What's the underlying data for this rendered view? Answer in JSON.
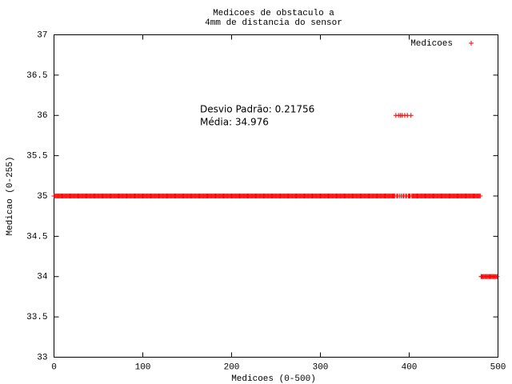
{
  "chart_data": {
    "type": "scatter",
    "title_lines": [
      "Medicoes de obstaculo a",
      "4mm de distancia do sensor"
    ],
    "x_label": "Medicoes (0-500)",
    "y_label": "Medicao (0-255)",
    "annotations": [
      "Desvio Padrão: 0.21756",
      "Média: 34.976"
    ],
    "xlim": [
      0,
      500
    ],
    "ylim": [
      33,
      37
    ],
    "xticks": [
      0,
      100,
      200,
      300,
      400,
      500
    ],
    "yticks": [
      33,
      33.5,
      34,
      34.5,
      35,
      35.5,
      36,
      36.5,
      37
    ],
    "legend": "top-right",
    "series": [
      {
        "name": "Medicoes",
        "color": "#ff0000",
        "x": [
          0,
          1,
          2,
          3,
          4,
          5,
          6,
          7,
          8,
          9,
          10,
          11,
          12,
          13,
          14,
          15,
          16,
          17,
          18,
          19,
          20,
          21,
          22,
          23,
          24,
          25,
          26,
          27,
          28,
          29,
          30,
          31,
          32,
          33,
          34,
          35,
          36,
          37,
          38,
          39,
          40,
          41,
          42,
          43,
          44,
          45,
          46,
          47,
          48,
          49,
          50,
          51,
          52,
          53,
          54,
          55,
          56,
          57,
          58,
          59,
          60,
          61,
          62,
          63,
          64,
          65,
          66,
          67,
          68,
          69,
          70,
          71,
          72,
          73,
          74,
          75,
          76,
          77,
          78,
          79,
          80,
          81,
          82,
          83,
          84,
          85,
          86,
          87,
          88,
          89,
          90,
          91,
          92,
          93,
          94,
          95,
          96,
          97,
          98,
          99,
          100,
          101,
          102,
          103,
          104,
          105,
          106,
          107,
          108,
          109,
          110,
          111,
          112,
          113,
          114,
          115,
          116,
          117,
          118,
          119,
          120,
          121,
          122,
          123,
          124,
          125,
          126,
          127,
          128,
          129,
          130,
          131,
          132,
          133,
          134,
          135,
          136,
          137,
          138,
          139,
          140,
          141,
          142,
          143,
          144,
          145,
          146,
          147,
          148,
          149,
          150,
          151,
          152,
          153,
          154,
          155,
          156,
          157,
          158,
          159,
          160,
          161,
          162,
          163,
          164,
          165,
          166,
          167,
          168,
          169,
          170,
          171,
          172,
          173,
          174,
          175,
          176,
          177,
          178,
          179,
          180,
          181,
          182,
          183,
          184,
          185,
          186,
          187,
          188,
          189,
          190,
          191,
          192,
          193,
          194,
          195,
          196,
          197,
          198,
          199,
          200,
          201,
          202,
          203,
          204,
          205,
          206,
          207,
          208,
          209,
          210,
          211,
          212,
          213,
          214,
          215,
          216,
          217,
          218,
          219,
          220,
          221,
          222,
          223,
          224,
          225,
          226,
          227,
          228,
          229,
          230,
          231,
          232,
          233,
          234,
          235,
          236,
          237,
          238,
          239,
          240,
          241,
          242,
          243,
          244,
          245,
          246,
          247,
          248,
          249,
          250,
          251,
          252,
          253,
          254,
          255,
          256,
          257,
          258,
          259,
          260,
          261,
          262,
          263,
          264,
          265,
          266,
          267,
          268,
          269,
          270,
          271,
          272,
          273,
          274,
          275,
          276,
          277,
          278,
          279,
          280,
          281,
          282,
          283,
          284,
          285,
          286,
          287,
          288,
          289,
          290,
          291,
          292,
          293,
          294,
          295,
          296,
          297,
          298,
          299,
          300,
          301,
          302,
          303,
          304,
          305,
          306,
          307,
          308,
          309,
          310,
          311,
          312,
          313,
          314,
          315,
          316,
          317,
          318,
          319,
          320,
          321,
          322,
          323,
          324,
          325,
          326,
          327,
          328,
          329,
          330,
          331,
          332,
          333,
          334,
          335,
          336,
          337,
          338,
          339,
          340,
          341,
          342,
          343,
          344,
          345,
          346,
          347,
          348,
          349,
          350,
          351,
          352,
          353,
          354,
          355,
          356,
          357,
          358,
          359,
          360,
          361,
          362,
          363,
          364,
          365,
          366,
          367,
          368,
          369,
          370,
          371,
          372,
          373,
          374,
          375,
          376,
          377,
          378,
          379,
          380,
          381,
          382,
          383,
          384,
          385,
          386,
          387,
          388,
          389,
          390,
          391,
          392,
          393,
          394,
          395,
          396,
          397,
          398,
          399,
          400,
          401,
          402,
          403,
          404,
          405,
          406,
          407,
          408,
          409,
          410,
          411,
          412,
          413,
          414,
          415,
          416,
          417,
          418,
          419,
          420,
          421,
          422,
          423,
          424,
          425,
          426,
          427,
          428,
          429,
          430,
          431,
          432,
          433,
          434,
          435,
          436,
          437,
          438,
          439,
          440,
          441,
          442,
          443,
          444,
          445,
          446,
          447,
          448,
          449,
          450,
          451,
          452,
          453,
          454,
          455,
          456,
          457,
          458,
          459,
          460,
          461,
          462,
          463,
          464,
          465,
          466,
          467,
          468,
          469,
          470,
          471,
          472,
          473,
          474,
          475,
          476,
          477,
          478,
          479,
          480,
          481,
          482,
          483,
          484,
          485,
          486,
          487,
          488,
          489,
          490,
          491,
          492,
          493,
          494,
          495,
          496,
          497,
          498,
          499
        ],
        "values": [
          35,
          35,
          35,
          35,
          35,
          35,
          35,
          35,
          35,
          35,
          35,
          35,
          35,
          35,
          35,
          35,
          35,
          35,
          35,
          35,
          35,
          35,
          35,
          35,
          35,
          35,
          35,
          35,
          35,
          35,
          35,
          35,
          35,
          35,
          35,
          35,
          35,
          35,
          35,
          35,
          35,
          35,
          35,
          35,
          35,
          35,
          35,
          35,
          35,
          35,
          35,
          35,
          35,
          35,
          35,
          35,
          35,
          35,
          35,
          35,
          35,
          35,
          35,
          35,
          35,
          35,
          35,
          35,
          35,
          35,
          35,
          35,
          35,
          35,
          35,
          35,
          35,
          35,
          35,
          35,
          35,
          35,
          35,
          35,
          35,
          35,
          35,
          35,
          35,
          35,
          35,
          35,
          35,
          35,
          35,
          35,
          35,
          35,
          35,
          35,
          35,
          35,
          35,
          35,
          35,
          35,
          35,
          35,
          35,
          35,
          35,
          35,
          35,
          35,
          35,
          35,
          35,
          35,
          35,
          35,
          35,
          35,
          35,
          35,
          35,
          35,
          35,
          35,
          35,
          35,
          35,
          35,
          35,
          35,
          35,
          35,
          35,
          35,
          35,
          35,
          35,
          35,
          35,
          35,
          35,
          35,
          35,
          35,
          35,
          35,
          35,
          35,
          35,
          35,
          35,
          35,
          35,
          35,
          35,
          35,
          35,
          35,
          35,
          35,
          35,
          35,
          35,
          35,
          35,
          35,
          35,
          35,
          35,
          35,
          35,
          35,
          35,
          35,
          35,
          35,
          35,
          35,
          35,
          35,
          35,
          35,
          35,
          35,
          35,
          35,
          35,
          35,
          35,
          35,
          35,
          35,
          35,
          35,
          35,
          35,
          35,
          35,
          35,
          35,
          35,
          35,
          35,
          35,
          35,
          35,
          35,
          35,
          35,
          35,
          35,
          35,
          35,
          35,
          35,
          35,
          35,
          35,
          35,
          35,
          35,
          35,
          35,
          35,
          35,
          35,
          35,
          35,
          35,
          35,
          35,
          35,
          35,
          35,
          35,
          35,
          35,
          35,
          35,
          35,
          35,
          35,
          35,
          35,
          35,
          35,
          35,
          35,
          35,
          35,
          35,
          35,
          35,
          35,
          35,
          35,
          35,
          35,
          35,
          35,
          35,
          35,
          35,
          35,
          35,
          35,
          35,
          35,
          35,
          35,
          35,
          35,
          35,
          35,
          35,
          35,
          35,
          35,
          35,
          35,
          35,
          35,
          35,
          35,
          35,
          35,
          35,
          35,
          35,
          35,
          35,
          35,
          35,
          35,
          35,
          35,
          35,
          35,
          35,
          35,
          35,
          35,
          35,
          35,
          35,
          35,
          35,
          35,
          35,
          35,
          35,
          35,
          35,
          35,
          35,
          35,
          35,
          35,
          35,
          35,
          35,
          35,
          35,
          35,
          35,
          35,
          35,
          35,
          35,
          35,
          35,
          35,
          35,
          35,
          35,
          35,
          35,
          35,
          35,
          35,
          35,
          35,
          35,
          35,
          35,
          35,
          35,
          35,
          35,
          35,
          35,
          35,
          35,
          35,
          35,
          35,
          35,
          35,
          35,
          35,
          35,
          35,
          35,
          35,
          35,
          35,
          35,
          35,
          35,
          35,
          35,
          35,
          35,
          35,
          35,
          35,
          35,
          35,
          35,
          35,
          35,
          36,
          35,
          35,
          36,
          35,
          36,
          35,
          36,
          35,
          35,
          36,
          35,
          35,
          36,
          35,
          35,
          35,
          36,
          35,
          35,
          35,
          35,
          35,
          35,
          35,
          35,
          35,
          35,
          35,
          35,
          35,
          35,
          35,
          35,
          35,
          35,
          35,
          35,
          35,
          35,
          35,
          35,
          35,
          35,
          35,
          35,
          35,
          35,
          35,
          35,
          35,
          35,
          35,
          35,
          35,
          35,
          35,
          35,
          35,
          35,
          35,
          35,
          35,
          35,
          35,
          35,
          35,
          35,
          35,
          35,
          35,
          35,
          35,
          35,
          35,
          35,
          35,
          35,
          35,
          35,
          35,
          35,
          35,
          35,
          35,
          35,
          35,
          35,
          35,
          35,
          35,
          35,
          35,
          35,
          35,
          35,
          34,
          34,
          34,
          34,
          34,
          34,
          34,
          34,
          34,
          34,
          34,
          34,
          34,
          34,
          34,
          34,
          34,
          34,
          34
        ]
      }
    ]
  }
}
